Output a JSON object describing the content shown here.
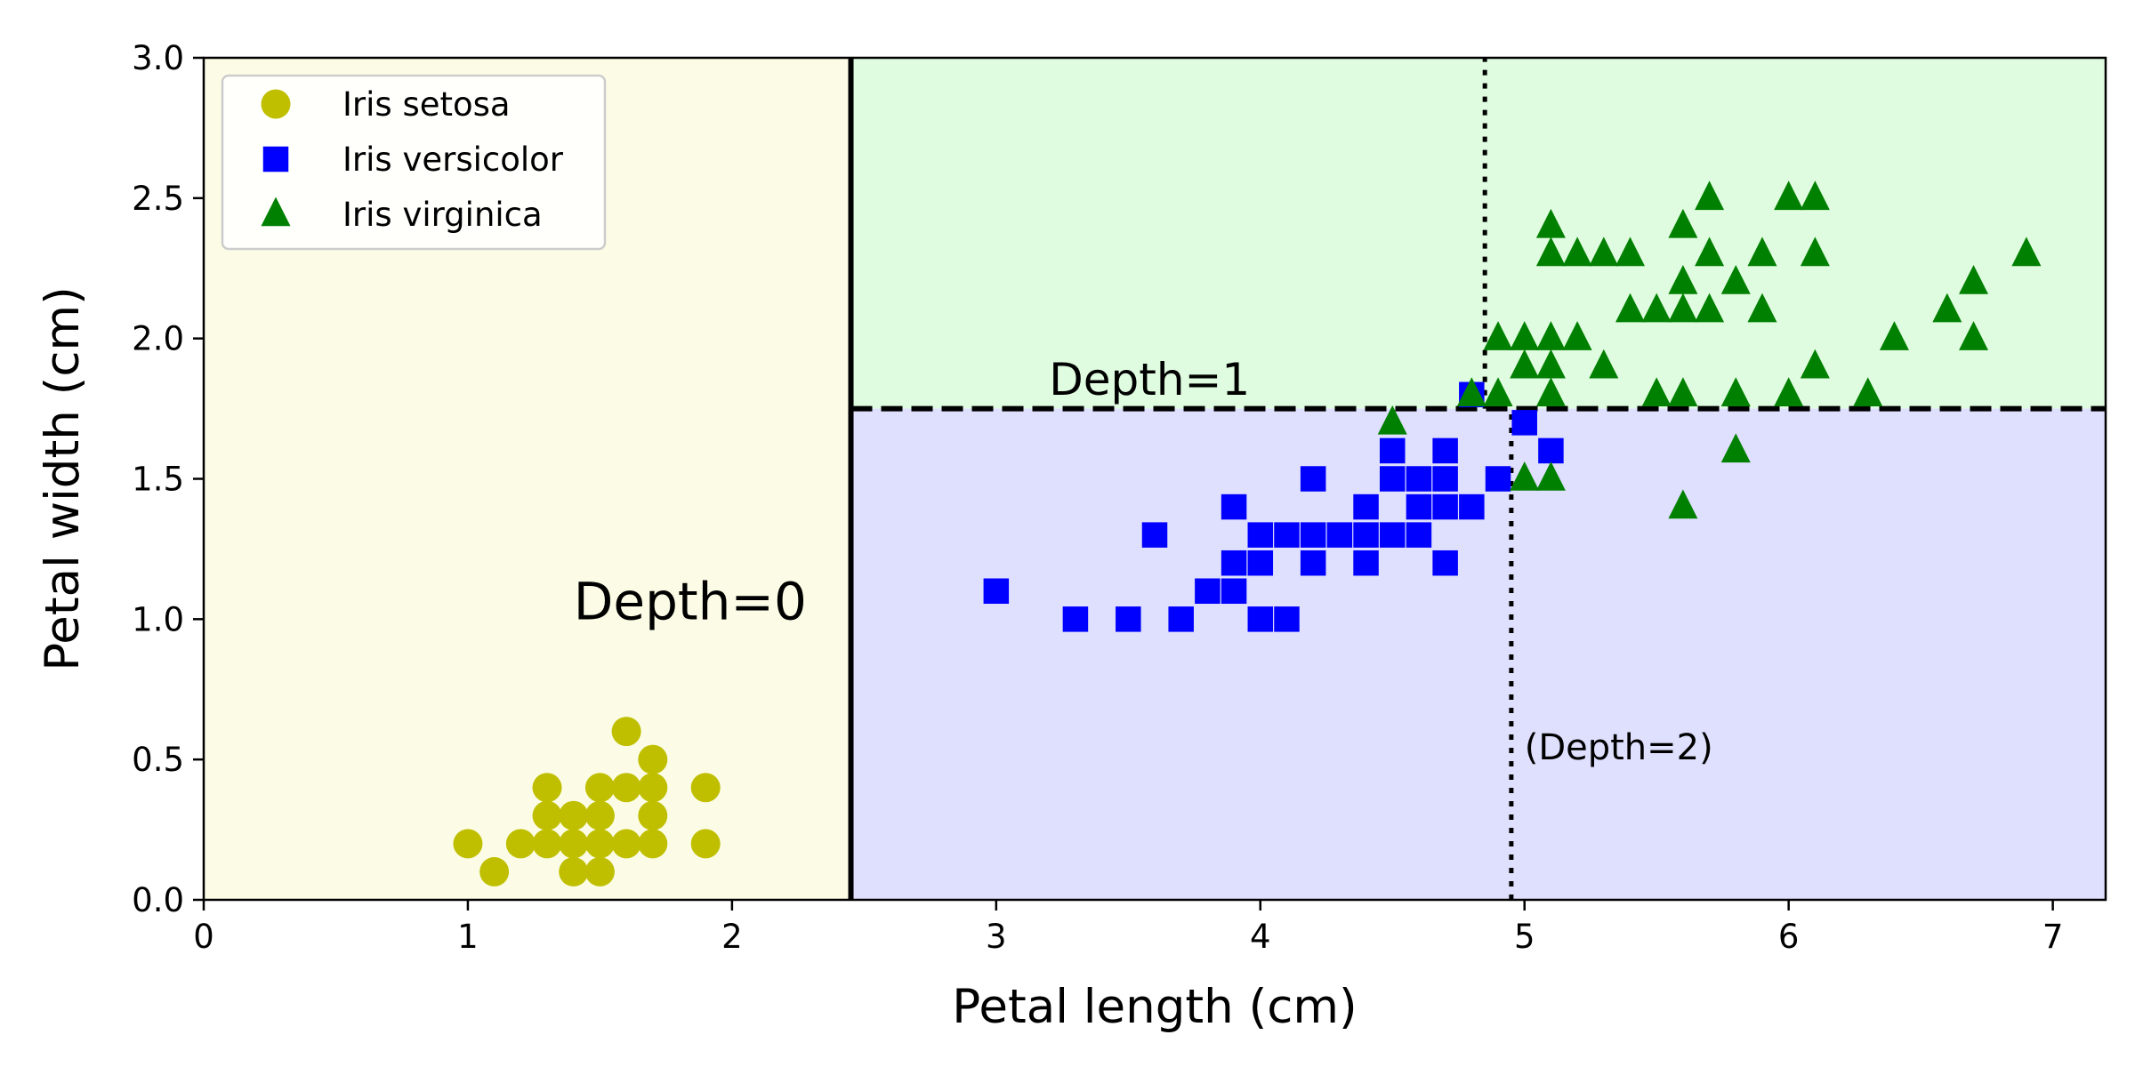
{
  "chart_data": {
    "type": "scatter",
    "xlabel": "Petal length (cm)",
    "ylabel": "Petal width (cm)",
    "xlim": [
      0,
      7.2
    ],
    "ylim": [
      0,
      3.0
    ],
    "xticks": [
      "0",
      "1",
      "2",
      "3",
      "4",
      "5",
      "6",
      "7"
    ],
    "yticks": [
      "0.0",
      "0.5",
      "1.0",
      "1.5",
      "2.0",
      "2.5",
      "3.0"
    ],
    "grid": false,
    "legend_position": "top-left",
    "regions": [
      {
        "x": [
          0,
          2.45
        ],
        "y": [
          0,
          3.0
        ],
        "color": "#fcfce6"
      },
      {
        "x": [
          2.45,
          7.2
        ],
        "y": [
          1.75,
          3.0
        ],
        "color": "#e0fce0"
      },
      {
        "x": [
          2.45,
          7.2
        ],
        "y": [
          0,
          1.75
        ],
        "color": "#dfdffe"
      }
    ],
    "boundaries": [
      {
        "orientation": "vertical",
        "x": 2.45,
        "y": [
          0,
          3.0
        ],
        "style": "solid"
      },
      {
        "orientation": "horizontal",
        "y": 1.75,
        "x": [
          2.45,
          7.2
        ],
        "style": "dashed"
      },
      {
        "orientation": "vertical",
        "x": 4.95,
        "y": [
          0,
          1.75
        ],
        "style": "dotted"
      },
      {
        "orientation": "vertical",
        "x": 4.85,
        "y": [
          1.75,
          3.0
        ],
        "style": "dotted"
      }
    ],
    "annotations": [
      {
        "text": "Depth=0",
        "x": 1.4,
        "y": 1.0,
        "size": "large"
      },
      {
        "text": "Depth=1",
        "x": 3.2,
        "y": 1.8,
        "size": "medium"
      },
      {
        "text": "(Depth=2)",
        "x": 5.0,
        "y": 0.5,
        "size": "small"
      }
    ],
    "series": [
      {
        "name": "Iris setosa",
        "marker": "circle",
        "color": "#bfbf00",
        "points": [
          [
            1.0,
            0.2
          ],
          [
            1.1,
            0.1
          ],
          [
            1.2,
            0.2
          ],
          [
            1.3,
            0.2
          ],
          [
            1.3,
            0.3
          ],
          [
            1.3,
            0.4
          ],
          [
            1.4,
            0.1
          ],
          [
            1.4,
            0.2
          ],
          [
            1.4,
            0.3
          ],
          [
            1.5,
            0.1
          ],
          [
            1.5,
            0.2
          ],
          [
            1.5,
            0.3
          ],
          [
            1.5,
            0.4
          ],
          [
            1.6,
            0.2
          ],
          [
            1.6,
            0.4
          ],
          [
            1.6,
            0.6
          ],
          [
            1.7,
            0.2
          ],
          [
            1.7,
            0.3
          ],
          [
            1.7,
            0.4
          ],
          [
            1.7,
            0.5
          ],
          [
            1.9,
            0.2
          ],
          [
            1.9,
            0.4
          ]
        ]
      },
      {
        "name": "Iris versicolor",
        "marker": "square",
        "color": "#0000ff",
        "points": [
          [
            3.0,
            1.1
          ],
          [
            3.3,
            1.0
          ],
          [
            3.5,
            1.0
          ],
          [
            3.6,
            1.3
          ],
          [
            3.7,
            1.0
          ],
          [
            3.8,
            1.1
          ],
          [
            3.9,
            1.1
          ],
          [
            3.9,
            1.2
          ],
          [
            3.9,
            1.4
          ],
          [
            4.0,
            1.0
          ],
          [
            4.0,
            1.2
          ],
          [
            4.0,
            1.3
          ],
          [
            4.1,
            1.0
          ],
          [
            4.1,
            1.3
          ],
          [
            4.2,
            1.2
          ],
          [
            4.2,
            1.3
          ],
          [
            4.2,
            1.5
          ],
          [
            4.3,
            1.3
          ],
          [
            4.4,
            1.2
          ],
          [
            4.4,
            1.3
          ],
          [
            4.4,
            1.4
          ],
          [
            4.5,
            1.3
          ],
          [
            4.5,
            1.5
          ],
          [
            4.5,
            1.6
          ],
          [
            4.6,
            1.3
          ],
          [
            4.6,
            1.4
          ],
          [
            4.6,
            1.5
          ],
          [
            4.7,
            1.2
          ],
          [
            4.7,
            1.4
          ],
          [
            4.7,
            1.5
          ],
          [
            4.7,
            1.6
          ],
          [
            4.8,
            1.4
          ],
          [
            4.8,
            1.8
          ],
          [
            4.9,
            1.5
          ],
          [
            5.0,
            1.7
          ],
          [
            5.1,
            1.6
          ]
        ]
      },
      {
        "name": "Iris virginica",
        "marker": "triangle",
        "color": "#008000",
        "points": [
          [
            4.5,
            1.7
          ],
          [
            4.8,
            1.8
          ],
          [
            4.9,
            1.8
          ],
          [
            4.9,
            2.0
          ],
          [
            5.0,
            1.5
          ],
          [
            5.0,
            1.9
          ],
          [
            5.0,
            2.0
          ],
          [
            5.1,
            1.5
          ],
          [
            5.1,
            1.8
          ],
          [
            5.1,
            1.9
          ],
          [
            5.1,
            2.0
          ],
          [
            5.1,
            2.3
          ],
          [
            5.1,
            2.4
          ],
          [
            5.2,
            2.0
          ],
          [
            5.2,
            2.3
          ],
          [
            5.3,
            1.9
          ],
          [
            5.3,
            2.3
          ],
          [
            5.4,
            2.1
          ],
          [
            5.4,
            2.3
          ],
          [
            5.5,
            1.8
          ],
          [
            5.5,
            2.1
          ],
          [
            5.6,
            1.4
          ],
          [
            5.6,
            1.8
          ],
          [
            5.6,
            2.1
          ],
          [
            5.6,
            2.2
          ],
          [
            5.6,
            2.4
          ],
          [
            5.7,
            2.1
          ],
          [
            5.7,
            2.3
          ],
          [
            5.7,
            2.5
          ],
          [
            5.8,
            1.6
          ],
          [
            5.8,
            1.8
          ],
          [
            5.8,
            2.2
          ],
          [
            5.9,
            2.1
          ],
          [
            5.9,
            2.3
          ],
          [
            6.0,
            1.8
          ],
          [
            6.0,
            2.5
          ],
          [
            6.1,
            1.9
          ],
          [
            6.1,
            2.3
          ],
          [
            6.1,
            2.5
          ],
          [
            6.3,
            1.8
          ],
          [
            6.4,
            2.0
          ],
          [
            6.6,
            2.1
          ],
          [
            6.7,
            2.0
          ],
          [
            6.7,
            2.2
          ],
          [
            6.9,
            2.3
          ]
        ]
      }
    ]
  }
}
